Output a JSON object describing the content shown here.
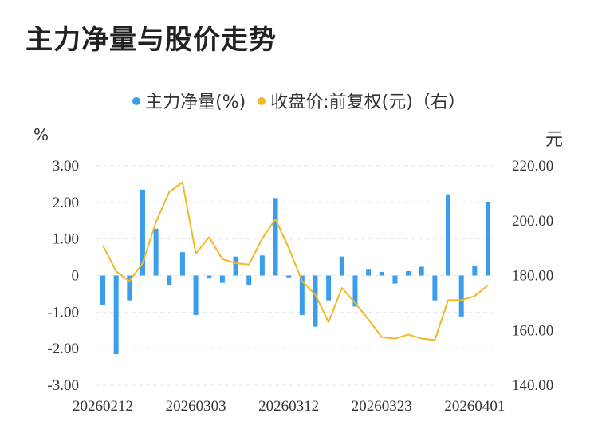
{
  "title": "主力净量与股价走势",
  "legend": {
    "bar_label": "主力净量(%)",
    "line_label": "收盘价:前复权(元)（右）"
  },
  "colors": {
    "bar": "#3A9EEA",
    "line": "#F2B824",
    "grid": "#E6E6E6"
  },
  "chart_data": {
    "type": "bar+line",
    "left_axis_unit": "%",
    "right_axis_unit": "元",
    "left_ylim": [
      -3,
      3
    ],
    "right_ylim": [
      140,
      220
    ],
    "left_ticks": [
      "3.00",
      "2.00",
      "1.00",
      "0",
      "-1.00",
      "-2.00",
      "-3.00"
    ],
    "right_ticks": [
      "220.00",
      "200.00",
      "180.00",
      "160.00",
      "140.00"
    ],
    "x_tick_labels": [
      "20260212",
      "20260303",
      "20260312",
      "20260323",
      "20260401"
    ],
    "x_tick_indices": [
      0,
      7,
      14,
      21,
      28
    ],
    "grid": true,
    "series": [
      {
        "name": "主力净量(%)",
        "type": "bar",
        "values": [
          -0.8,
          -2.15,
          -0.68,
          2.35,
          1.28,
          -0.25,
          0.64,
          -1.08,
          -0.08,
          -0.2,
          0.52,
          -0.25,
          0.55,
          2.12,
          -0.05,
          -1.08,
          -1.4,
          -0.68,
          0.52,
          -0.85,
          0.18,
          0.1,
          -0.22,
          0.12,
          0.24,
          -0.68,
          2.22,
          -1.12,
          0.26,
          2.02
        ]
      },
      {
        "name": "收盘价:前复权(元)（右）",
        "type": "line",
        "values": [
          191,
          181.5,
          178,
          184.5,
          199.5,
          210.5,
          214,
          188,
          194,
          186,
          184.5,
          184,
          193.5,
          200.5,
          190,
          178,
          173,
          163,
          175.5,
          170,
          164,
          157.5,
          157,
          158.5,
          157,
          156.5,
          171,
          171,
          172.5,
          176.5
        ]
      }
    ]
  }
}
